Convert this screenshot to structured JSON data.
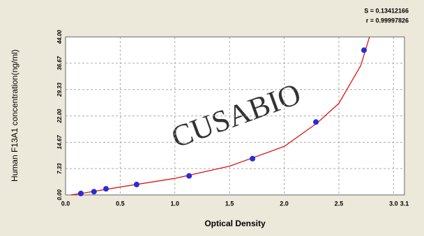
{
  "chart_data": {
    "type": "scatter",
    "stats": [
      "S = 0.13412166",
      "r = 0.99997826"
    ],
    "watermark": "CUSABIO",
    "x_label": "Optical Density",
    "y_label": "Human F13A1 concentration(ng/ml)",
    "xlim": [
      0,
      3.1
    ],
    "ylim": [
      0,
      44
    ],
    "xticks": [
      {
        "value": 0,
        "label": "0.0"
      },
      0.5,
      {
        "value": 1,
        "label": "1.0"
      },
      1.5,
      {
        "value": 2,
        "label": "2.0"
      },
      2.5,
      {
        "value": 3,
        "label": "3.0"
      },
      3.1
    ],
    "yticks": [
      {
        "value": 0,
        "label": "0.00"
      },
      7.33,
      14.67,
      {
        "value": 22,
        "label": "22.00"
      },
      29.33,
      36.67,
      {
        "value": 44,
        "label": "44.00"
      }
    ],
    "grid": true,
    "series": [
      {
        "type": "scatter",
        "color": "#2a2ad8",
        "x": [
          0.14,
          0.26,
          0.37,
          0.65,
          1.13,
          1.71,
          2.29,
          2.73
        ],
        "values": [
          0.4,
          0.9,
          1.7,
          2.9,
          5.3,
          10.1,
          20.3,
          40.3
        ]
      },
      {
        "type": "line",
        "color": "#e00000",
        "x": [
          0.05,
          0.14,
          0.5,
          1.0,
          1.5,
          2.0,
          2.3,
          2.5,
          2.7,
          2.78
        ],
        "values": [
          0,
          0.4,
          2.2,
          4.6,
          8.0,
          13.5,
          20.0,
          25.5,
          36.0,
          44.0
        ]
      }
    ]
  }
}
